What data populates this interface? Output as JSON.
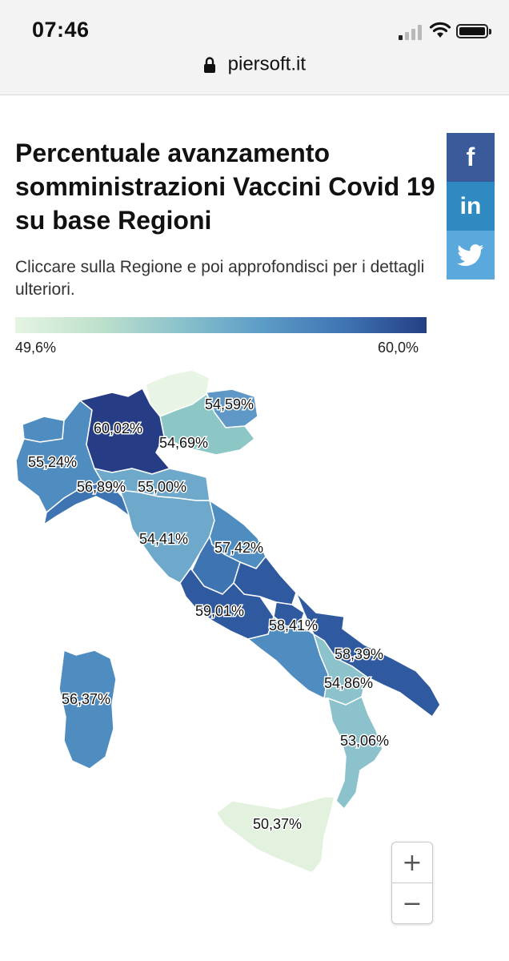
{
  "status_bar": {
    "time": "07:46"
  },
  "browser": {
    "url": "piersoft.it"
  },
  "header": {
    "title": "Percentuale avanzamento somministrazioni Vaccini Covid 19 su base Regioni",
    "subtitle": "Cliccare sulla Regione e poi approfondisci per i dettagli ulteriori."
  },
  "social": {
    "facebook": "f",
    "linkedin": "in"
  },
  "legend": {
    "min_label": "49,6%",
    "max_label": "60,0%",
    "min_value": 49.6,
    "max_value": 60.0
  },
  "map": {
    "labels": {
      "veneto": "54,59%",
      "lombardia": "60,02%",
      "emilia_romagna": "54,69%",
      "piemonte": "55,24%",
      "liguria": "56,89%",
      "toscana": "55,00%",
      "umbria": "54,41%",
      "marche": "57,42%",
      "lazio": "59,01%",
      "campania": "58,41%",
      "puglia": "58,39%",
      "basilicata": "54,86%",
      "sardegna": "56,37%",
      "calabria": "53,06%",
      "sicilia": "50,37%"
    }
  },
  "zoom": {
    "plus": "+",
    "minus": "−"
  }
}
